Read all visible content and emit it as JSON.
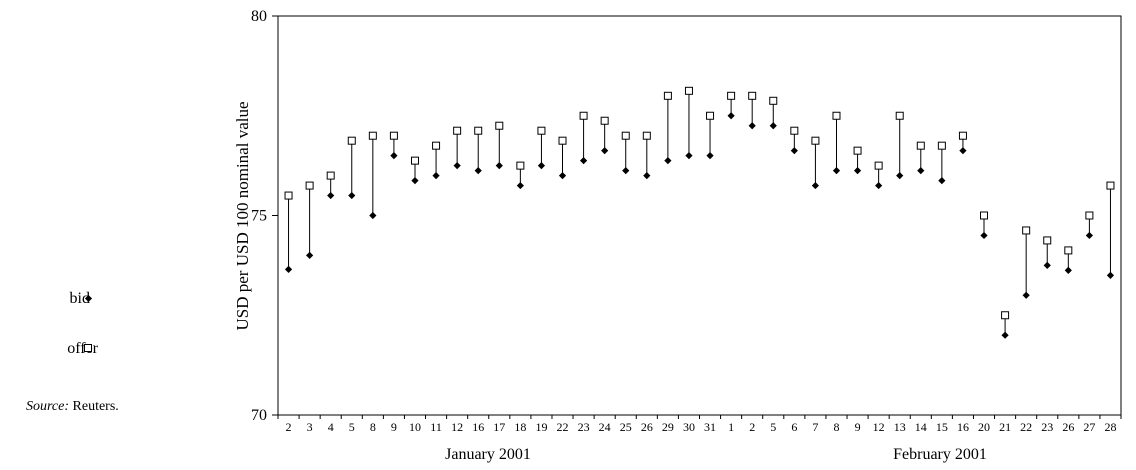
{
  "legend": {
    "bid_label": "bid",
    "offer_label": "offer"
  },
  "source": {
    "label": "Source:",
    "text": "Reuters."
  },
  "chart_data": {
    "type": "scatter",
    "style": "bid-offer range: line from bid to offer per day",
    "ylabel": "USD per USD 100 nominal value",
    "ylim": [
      70,
      80
    ],
    "yticks": [
      70,
      75,
      80
    ],
    "grid": false,
    "legend_position": "left",
    "x_group_labels": [
      "January 2001",
      "February 2001"
    ],
    "categories": [
      "2",
      "3",
      "4",
      "5",
      "8",
      "9",
      "10",
      "11",
      "12",
      "16",
      "17",
      "18",
      "19",
      "22",
      "23",
      "24",
      "25",
      "26",
      "29",
      "30",
      "31",
      "1",
      "2",
      "5",
      "6",
      "7",
      "8",
      "9",
      "12",
      "13",
      "14",
      "15",
      "16",
      "20",
      "21",
      "22",
      "23",
      "26",
      "27",
      "28"
    ],
    "series": [
      {
        "name": "bid",
        "marker": "filled-diamond",
        "values": [
          73.65,
          74.0,
          75.5,
          75.5,
          75.0,
          76.5,
          75.875,
          76.0,
          76.25,
          76.125,
          76.25,
          75.75,
          76.25,
          76.0,
          76.375,
          76.625,
          76.125,
          76.0,
          76.375,
          76.5,
          76.5,
          77.5,
          77.25,
          77.25,
          76.625,
          75.75,
          76.125,
          76.125,
          75.75,
          76.0,
          76.125,
          75.875,
          76.625,
          74.5,
          72.0,
          73.0,
          73.75,
          73.625,
          74.5,
          73.5
        ]
      },
      {
        "name": "offer",
        "marker": "open-square",
        "values": [
          75.5,
          75.75,
          76.0,
          76.875,
          77.0,
          77.0,
          76.375,
          76.75,
          77.125,
          77.125,
          77.25,
          76.25,
          77.125,
          76.875,
          77.5,
          77.375,
          77.0,
          77.0,
          78.0,
          78.125,
          77.5,
          78.0,
          78.0,
          77.875,
          77.125,
          76.875,
          77.5,
          76.625,
          76.25,
          77.5,
          76.75,
          76.75,
          77.0,
          75.0,
          72.5,
          74.625,
          74.375,
          74.125,
          75.0,
          75.75
        ]
      }
    ]
  }
}
